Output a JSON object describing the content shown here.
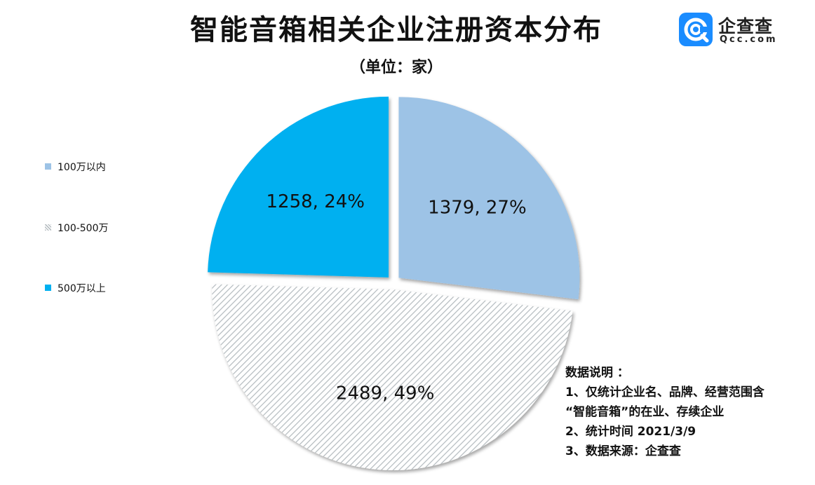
{
  "title": "智能音箱相关企业注册资本分布",
  "subtitle": "（单位：家）",
  "logo": {
    "name": "企查查",
    "domain": "Qcc.com",
    "icon": "qcc-logo-icon",
    "color": "#1a8cff"
  },
  "legend": [
    {
      "label": "100万以内",
      "color": "#9dc3e6",
      "pattern": "solid"
    },
    {
      "label": "100-500万",
      "color": "#c9cfd2",
      "pattern": "hatch"
    },
    {
      "label": "500万以上",
      "color": "#00b0f0",
      "pattern": "solid"
    }
  ],
  "chart_data": {
    "type": "pie",
    "title": "智能音箱相关企业注册资本分布",
    "subtitle": "（单位：家）",
    "exploded": true,
    "legend_position": "left",
    "slices": [
      {
        "label": "100万以内",
        "value": 1379,
        "percent": 27,
        "data_label": "1379, 27%",
        "color": "#9dc3e6"
      },
      {
        "label": "100-500万",
        "value": 2489,
        "percent": 49,
        "data_label": "2489, 49%",
        "color": "#c9cfd2"
      },
      {
        "label": "500万以上",
        "value": 1258,
        "percent": 24,
        "data_label": "1258, 24%",
        "color": "#00b0f0"
      }
    ]
  },
  "notes": {
    "heading": "数据说明 ：",
    "lines": [
      "1、仅统计企业名、品牌、经营范围含",
      "“智能音箱”的在业、存续企业",
      "2、统计时间  2021/3/9",
      "3、数据来源：企查查"
    ]
  }
}
